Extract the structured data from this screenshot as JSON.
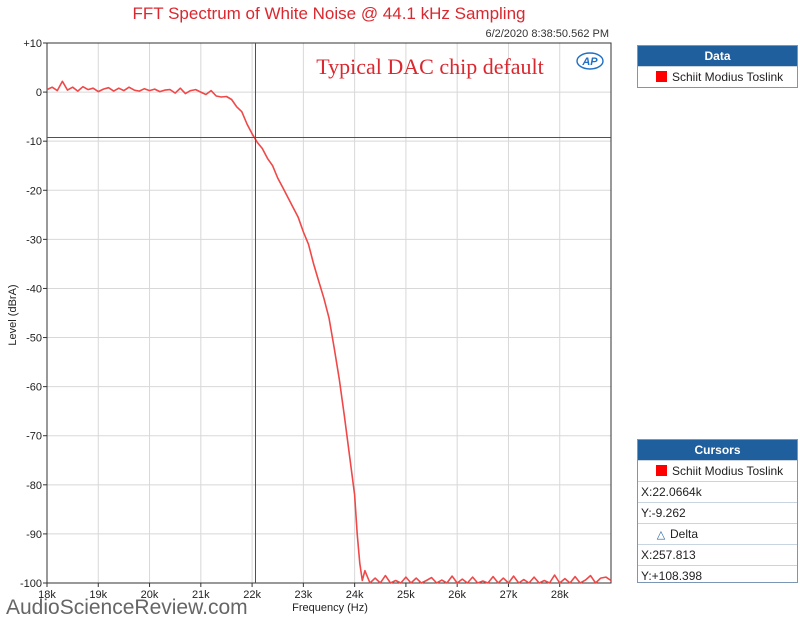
{
  "header": {
    "title": "FFT Spectrum of White Noise @ 44.1 kHz Sampling",
    "timestamp": "6/2/2020 8:38:50.562 PM"
  },
  "logo": "AP",
  "annotation": "Typical DAC chip default",
  "watermark": "AudioScienceReview.com",
  "cursor_lines": {
    "x": 22066.4,
    "y": -9.262
  },
  "data_panel": {
    "title": "Data",
    "entries": [
      {
        "label": "Schiit Modius Toslink",
        "color": "#ff0000"
      }
    ]
  },
  "cursors_panel": {
    "title": "Cursors",
    "series_label": "Schiit Modius Toslink",
    "series_color": "#ff0000",
    "x_readout": "X:22.0664k",
    "y_readout": "Y:-9.262",
    "delta_label": "Delta",
    "delta_x": "X:257.813",
    "delta_y": "Y:+108.398"
  },
  "colors": {
    "trace": "#f04848",
    "cursor": "#c0202a",
    "grid": "#d8d8d8",
    "panel_header": "#1f5f9e"
  },
  "chart_data": {
    "type": "line",
    "xlabel": "Frequency (Hz)",
    "ylabel": "Level (dBrA)",
    "xlim": [
      18000,
      29000
    ],
    "ylim": [
      -100,
      10
    ],
    "grid": true,
    "x_ticks": [
      {
        "value": 18000,
        "label": "18k"
      },
      {
        "value": 19000,
        "label": "19k"
      },
      {
        "value": 20000,
        "label": "20k"
      },
      {
        "value": 21000,
        "label": "21k"
      },
      {
        "value": 22000,
        "label": "22k"
      },
      {
        "value": 23000,
        "label": "23k"
      },
      {
        "value": 24000,
        "label": "24k"
      },
      {
        "value": 25000,
        "label": "25k"
      },
      {
        "value": 26000,
        "label": "26k"
      },
      {
        "value": 27000,
        "label": "27k"
      },
      {
        "value": 28000,
        "label": "28k"
      }
    ],
    "y_ticks": [
      {
        "value": 10,
        "label": "+10"
      },
      {
        "value": 0,
        "label": "0"
      },
      {
        "value": -10,
        "label": "-10"
      },
      {
        "value": -20,
        "label": "-20"
      },
      {
        "value": -30,
        "label": "-30"
      },
      {
        "value": -40,
        "label": "-40"
      },
      {
        "value": -50,
        "label": "-50"
      },
      {
        "value": -60,
        "label": "-60"
      },
      {
        "value": -70,
        "label": "-70"
      },
      {
        "value": -80,
        "label": "-80"
      },
      {
        "value": -90,
        "label": "-90"
      },
      {
        "value": -100,
        "label": "-100"
      }
    ],
    "series": [
      {
        "name": "Schiit Modius Toslink",
        "color": "#f04848",
        "x": [
          18000,
          18100,
          18200,
          18300,
          18400,
          18500,
          18600,
          18700,
          18800,
          18900,
          19000,
          19100,
          19200,
          19300,
          19400,
          19500,
          19600,
          19700,
          19800,
          19900,
          20000,
          20100,
          20200,
          20300,
          20400,
          20500,
          20600,
          20700,
          20800,
          20900,
          21000,
          21100,
          21200,
          21300,
          21400,
          21500,
          21600,
          21700,
          21800,
          21900,
          22000,
          22100,
          22200,
          22300,
          22400,
          22500,
          22600,
          22700,
          22800,
          22900,
          23000,
          23100,
          23200,
          23300,
          23400,
          23500,
          23600,
          23700,
          23800,
          23900,
          24000,
          24050,
          24100,
          24150,
          24200,
          24300,
          24400,
          24500,
          24600,
          24700,
          24800,
          24900,
          25000,
          25100,
          25200,
          25300,
          25400,
          25500,
          25600,
          25700,
          25800,
          25900,
          26000,
          26100,
          26200,
          26300,
          26400,
          26500,
          26600,
          26700,
          26800,
          26900,
          27000,
          27100,
          27200,
          27300,
          27400,
          27500,
          27600,
          27700,
          27800,
          27900,
          28000,
          28100,
          28200,
          28300,
          28400,
          28500,
          28600,
          28700,
          28800,
          28900,
          29000
        ],
        "y": [
          0.5,
          1.0,
          0.3,
          2.2,
          0.4,
          1.0,
          0.2,
          1.1,
          0.5,
          0.8,
          0.1,
          0.6,
          0.9,
          0.2,
          0.8,
          0.3,
          1.0,
          0.4,
          0.2,
          0.7,
          0.3,
          0.6,
          0.1,
          0.4,
          0.5,
          -0.2,
          0.8,
          -0.3,
          0.3,
          0.5,
          0.0,
          -0.5,
          0.3,
          -0.8,
          -1.0,
          -0.9,
          -1.5,
          -3.0,
          -4.0,
          -6.5,
          -8.5,
          -10.2,
          -11.5,
          -13.5,
          -15.0,
          -17.5,
          -19.5,
          -21.5,
          -23.5,
          -25.5,
          -28.5,
          -31.0,
          -35.0,
          -38.5,
          -42.0,
          -46.0,
          -52.0,
          -58.5,
          -66.0,
          -74.0,
          -82.0,
          -90.0,
          -96.0,
          -99.5,
          -97.5,
          -100.5,
          -99.0,
          -101.0,
          -98.5,
          -100.0,
          -99.5,
          -101.5,
          -98.8,
          -100.3,
          -99.0,
          -101.0,
          -99.5,
          -98.9,
          -100.8,
          -99.4,
          -101.2,
          -98.6,
          -100.0,
          -99.2,
          -101.0,
          -98.8,
          -100.4,
          -99.6,
          -101.5,
          -98.7,
          -100.1,
          -99.0,
          -100.9,
          -98.6,
          -100.5,
          -99.3,
          -101.2,
          -98.8,
          -100.2,
          -99.5,
          -101.0,
          -98.4,
          -100.0,
          -99.1,
          -101.3,
          -98.7,
          -100.6,
          -99.4,
          -98.5,
          -100.2,
          -99.0,
          -98.8,
          -99.5
        ]
      }
    ]
  }
}
